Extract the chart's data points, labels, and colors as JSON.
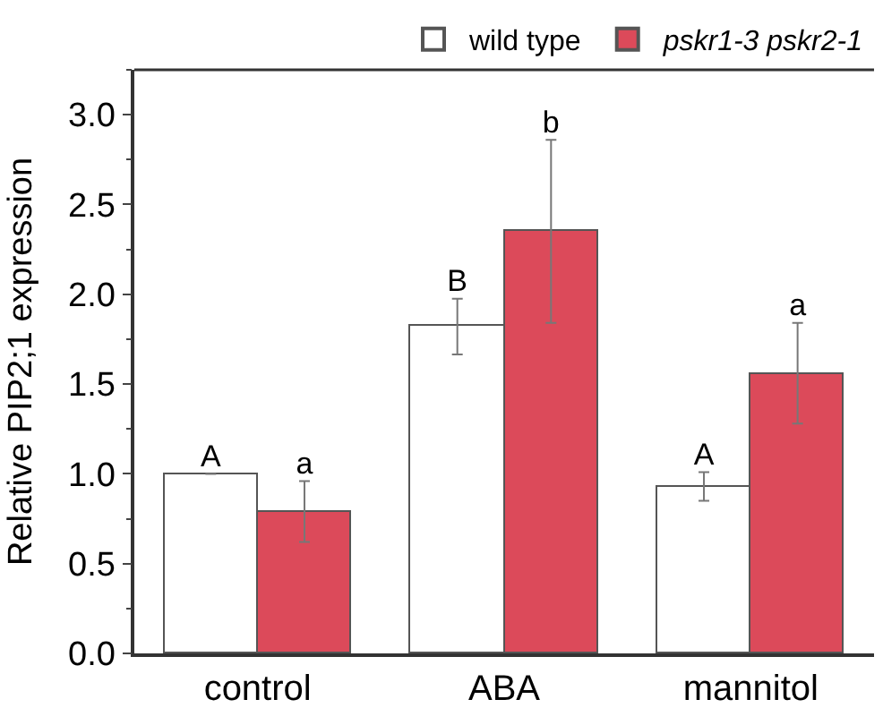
{
  "chart_data": {
    "type": "bar",
    "ylabel": "Relative PIP2;1 expression",
    "categories": [
      "control",
      "ABA",
      "mannitol"
    ],
    "series": [
      {
        "name": "wild type",
        "color": "#ffffff",
        "values": [
          1.0,
          1.82,
          0.93
        ],
        "errors": [
          null,
          0.155,
          0.08
        ],
        "value_labels": [
          "A",
          "B",
          "A"
        ]
      },
      {
        "name": "pskr1-3 pskr2-1",
        "color": "#dc4a5a",
        "values": [
          0.79,
          2.35,
          1.56
        ],
        "errors": [
          0.17,
          0.51,
          0.28
        ],
        "value_labels": [
          "a",
          "b",
          "a"
        ]
      }
    ],
    "ylim": [
      0,
      3.25
    ],
    "yticks": [
      {
        "value": 0,
        "label": "0.0"
      },
      0.5,
      {
        "value": 1,
        "label": "1.0"
      },
      1.5,
      {
        "value": 2,
        "label": "2.0"
      },
      2.5,
      {
        "value": 3,
        "label": "3.0"
      }
    ],
    "legend": "top right"
  }
}
